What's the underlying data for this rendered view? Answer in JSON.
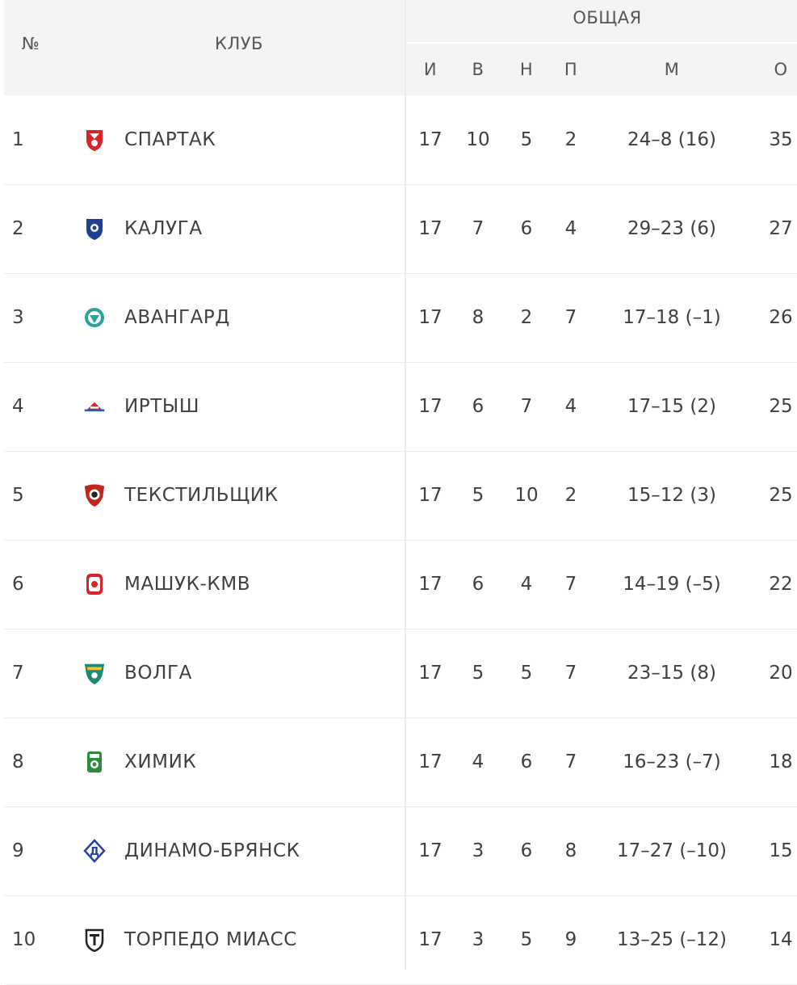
{
  "header": {
    "num": "№",
    "club": "КЛУБ",
    "group": "ОБЩАЯ",
    "cols": [
      "И",
      "В",
      "Н",
      "П",
      "М",
      "О"
    ]
  },
  "rows": [
    {
      "pos": "1",
      "club": "СПАРТАК",
      "logo": "spartak-logo",
      "color": "#d8232a",
      "i": "17",
      "w": "10",
      "d": "5",
      "l": "2",
      "m": "24–8 (16)",
      "o": "35"
    },
    {
      "pos": "2",
      "club": "КАЛУГА",
      "logo": "kaluga-logo",
      "color": "#1f3f8f",
      "i": "17",
      "w": "7",
      "d": "6",
      "l": "4",
      "m": "29–23 (6)",
      "o": "27"
    },
    {
      "pos": "3",
      "club": "АВАНГАРД",
      "logo": "avangard-logo",
      "color": "#2aa3a0",
      "i": "17",
      "w": "8",
      "d": "2",
      "l": "7",
      "m": "17–18 (–1)",
      "o": "26"
    },
    {
      "pos": "4",
      "club": "ИРТЫШ",
      "logo": "irtysh-logo",
      "color": "#1d63b8",
      "i": "17",
      "w": "6",
      "d": "7",
      "l": "4",
      "m": "17–15 (2)",
      "o": "25"
    },
    {
      "pos": "5",
      "club": "ТЕКСТИЛЬЩИК",
      "logo": "tekstilshchik-logo",
      "color": "#c0261e",
      "i": "17",
      "w": "5",
      "d": "10",
      "l": "2",
      "m": "15–12 (3)",
      "o": "25"
    },
    {
      "pos": "6",
      "club": "МАШУК-КМВ",
      "logo": "mashuk-logo",
      "color": "#d8232a",
      "i": "17",
      "w": "6",
      "d": "4",
      "l": "7",
      "m": "14–19 (–5)",
      "o": "22"
    },
    {
      "pos": "7",
      "club": "ВОЛГА",
      "logo": "volga-logo",
      "color": "#1a8a72",
      "i": "17",
      "w": "5",
      "d": "5",
      "l": "7",
      "m": "23–15 (8)",
      "o": "20"
    },
    {
      "pos": "8",
      "club": "ХИМИК",
      "logo": "khimik-logo",
      "color": "#2e8b3e",
      "i": "17",
      "w": "4",
      "d": "6",
      "l": "7",
      "m": "16–23 (–7)",
      "o": "18"
    },
    {
      "pos": "9",
      "club": "ДИНАМО-БРЯНСК",
      "logo": "dinamo-logo",
      "color": "#2a3f9e",
      "i": "17",
      "w": "3",
      "d": "6",
      "l": "8",
      "m": "17–27 (–10)",
      "o": "15"
    },
    {
      "pos": "10",
      "club": "ТОРПЕДО МИАСС",
      "logo": "torpedo-logo",
      "color": "#222222",
      "i": "17",
      "w": "3",
      "d": "5",
      "l": "9",
      "m": "13–25 (–12)",
      "o": "14"
    }
  ]
}
